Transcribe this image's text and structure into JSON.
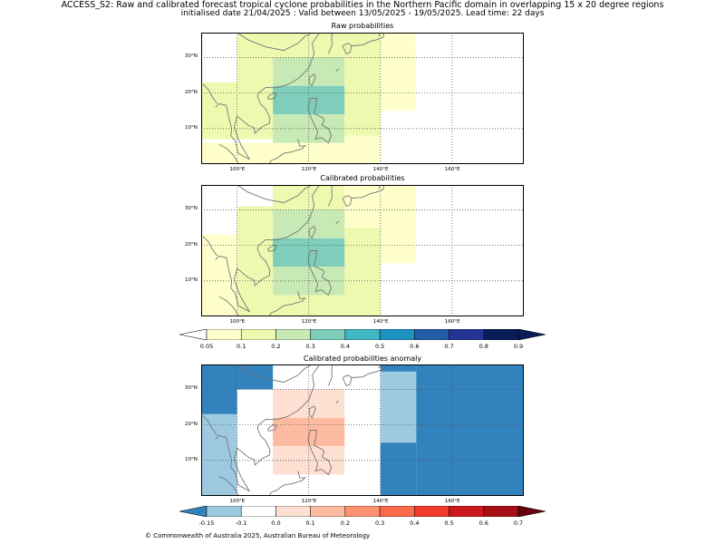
{
  "title_line1": "ACCESS_S2: Raw and calibrated forecast tropical cyclone probabilities in the Northern Pacific domain in overlapping 15 x 20 degree regions",
  "title_line2": "initialised date 21/04/2025 :  Valid between 13/05/2025 - 19/05/2025. Lead time: 22 days",
  "panels": [
    {
      "title": "Raw probabilities",
      "kind": "prob",
      "cells": [
        {
          "lon": [
            110,
            130
          ],
          "lat": [
            30,
            37
          ],
          "v": 0.15
        },
        {
          "lon": [
            130,
            150
          ],
          "lat": [
            33,
            37
          ],
          "v": 0.07
        },
        {
          "lon": [
            100,
            110
          ],
          "lat": [
            25,
            37
          ],
          "v": 0.15
        },
        {
          "lon": [
            110,
            130
          ],
          "lat": [
            22,
            30
          ],
          "v": 0.25
        },
        {
          "lon": [
            130,
            140
          ],
          "lat": [
            8,
            37
          ],
          "v": 0.15
        },
        {
          "lon": [
            140,
            150
          ],
          "lat": [
            15,
            33
          ],
          "v": 0.07
        },
        {
          "lon": [
            90,
            100
          ],
          "lat": [
            7,
            23
          ],
          "v": 0.15
        },
        {
          "lon": [
            100,
            110
          ],
          "lat": [
            7,
            25
          ],
          "v": 0.15
        },
        {
          "lon": [
            110,
            130
          ],
          "lat": [
            14,
            22
          ],
          "v": 0.35
        },
        {
          "lon": [
            110,
            130
          ],
          "lat": [
            6,
            14
          ],
          "v": 0.25
        },
        {
          "lon": [
            90,
            130
          ],
          "lat": [
            0,
            6
          ],
          "v": 0.07
        },
        {
          "lon": [
            130,
            140
          ],
          "lat": [
            0,
            8
          ],
          "v": 0.07
        }
      ]
    },
    {
      "title": "Calibrated probabilities",
      "kind": "prob",
      "cells": [
        {
          "lon": [
            110,
            130
          ],
          "lat": [
            30,
            37
          ],
          "v": 0.15
        },
        {
          "lon": [
            130,
            150
          ],
          "lat": [
            25,
            37
          ],
          "v": 0.07
        },
        {
          "lon": [
            100,
            110
          ],
          "lat": [
            25,
            31
          ],
          "v": 0.15
        },
        {
          "lon": [
            110,
            130
          ],
          "lat": [
            22,
            30
          ],
          "v": 0.25
        },
        {
          "lon": [
            130,
            140
          ],
          "lat": [
            0,
            25
          ],
          "v": 0.15
        },
        {
          "lon": [
            140,
            150
          ],
          "lat": [
            15,
            25
          ],
          "v": 0.07
        },
        {
          "lon": [
            90,
            100
          ],
          "lat": [
            0,
            23
          ],
          "v": 0.07
        },
        {
          "lon": [
            100,
            110
          ],
          "lat": [
            0,
            25
          ],
          "v": 0.15
        },
        {
          "lon": [
            110,
            130
          ],
          "lat": [
            14,
            22
          ],
          "v": 0.35
        },
        {
          "lon": [
            110,
            130
          ],
          "lat": [
            6,
            14
          ],
          "v": 0.25
        },
        {
          "lon": [
            110,
            130
          ],
          "lat": [
            0,
            6
          ],
          "v": 0.15
        }
      ]
    },
    {
      "title": "Calibrated probabilities anomaly",
      "kind": "anom",
      "cells": [
        {
          "lon": [
            90,
            110
          ],
          "lat": [
            30,
            37
          ],
          "v": -0.2
        },
        {
          "lon": [
            90,
            100
          ],
          "lat": [
            23,
            30
          ],
          "v": -0.2
        },
        {
          "lon": [
            90,
            100
          ],
          "lat": [
            0,
            23
          ],
          "v": -0.12
        },
        {
          "lon": [
            110,
            130
          ],
          "lat": [
            22,
            30
          ],
          "v": 0.05
        },
        {
          "lon": [
            110,
            130
          ],
          "lat": [
            14,
            22
          ],
          "v": 0.15
        },
        {
          "lon": [
            110,
            130
          ],
          "lat": [
            6,
            14
          ],
          "v": 0.05
        },
        {
          "lon": [
            140,
            150
          ],
          "lat": [
            15,
            35
          ],
          "v": -0.12
        },
        {
          "lon": [
            150,
            180
          ],
          "lat": [
            0,
            37
          ],
          "v": -0.2
        },
        {
          "lon": [
            140,
            150
          ],
          "lat": [
            0,
            15
          ],
          "v": -0.2
        },
        {
          "lon": [
            140,
            150
          ],
          "lat": [
            35,
            37
          ],
          "v": -0.2
        }
      ]
    }
  ],
  "lon_ticks": [
    "100°E",
    "120°E",
    "140°E",
    "160°E"
  ],
  "lat_ticks": [
    "10°N",
    "20°N",
    "30°N"
  ],
  "colorbar_prob": {
    "bounds": [
      0.05,
      0.1,
      0.2,
      0.3,
      0.4,
      0.5,
      0.6,
      0.7,
      0.8,
      0.9
    ],
    "labels": [
      "0.05",
      "0.1",
      "0.2",
      "0.3",
      "0.4",
      "0.5",
      "0.6",
      "0.7",
      "0.8",
      "0.9"
    ],
    "colors": [
      "#ffffcc",
      "#eef9b0",
      "#c7e9b4",
      "#7fcdbb",
      "#41b6c4",
      "#1d91c0",
      "#225ea8",
      "#253494",
      "#081d58"
    ],
    "under": "#ffffff",
    "over": "#081d58"
  },
  "colorbar_anom": {
    "bounds": [
      -0.15,
      -0.1,
      0.0,
      0.1,
      0.2,
      0.3,
      0.4,
      0.5,
      0.6,
      0.7
    ],
    "labels": [
      "-0.15",
      "-0.1",
      "0.0",
      "0.1",
      "0.2",
      "0.3",
      "0.4",
      "0.5",
      "0.6",
      "0.7"
    ],
    "colors": [
      "#9ecae1",
      "#ffffff",
      "#fee0d2",
      "#fcbba1",
      "#fc9272",
      "#fb6a4a",
      "#ef3b2c",
      "#cb181d",
      "#a50f15"
    ],
    "under": "#3182bd",
    "over": "#67000d"
  },
  "footer": "© Commonwealth of Australia 2025, Australian Bureau of Meteorology"
}
